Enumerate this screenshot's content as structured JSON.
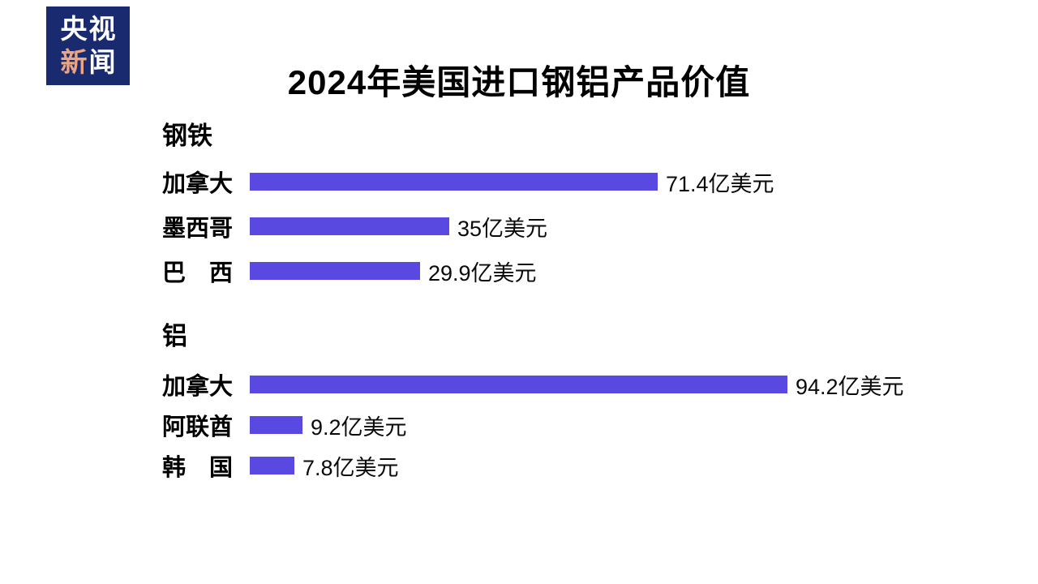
{
  "logo": {
    "line1": "央视",
    "line2_char1": "新",
    "line2_char2": "闻",
    "bg_color": "#1a2a6e",
    "accent_color": "#e9a584"
  },
  "title": "2024年美国进口钢铝产品价值",
  "chart_data": {
    "type": "bar",
    "orientation": "horizontal",
    "title": "2024年美国进口钢铝产品价值",
    "unit": "亿美元",
    "bar_color": "#5a49e0",
    "xlim": [
      0,
      100
    ],
    "legend": "none",
    "grid": false,
    "groups": [
      {
        "name": "钢铁",
        "categories": [
          "加拿大",
          "墨西哥",
          "巴西"
        ],
        "display_labels": [
          "加拿大",
          "墨西哥",
          "巴　西"
        ],
        "values": [
          71.4,
          35,
          29.9
        ],
        "value_labels": [
          "71.4亿美元",
          "35亿美元",
          "29.9亿美元"
        ]
      },
      {
        "name": "铝",
        "categories": [
          "加拿大",
          "阿联酋",
          "韩国"
        ],
        "display_labels": [
          "加拿大",
          "阿联酋",
          "韩　国"
        ],
        "values": [
          94.2,
          9.2,
          7.8
        ],
        "value_labels": [
          "94.2亿美元",
          "9.2亿美元",
          "7.8亿美元"
        ]
      }
    ]
  }
}
